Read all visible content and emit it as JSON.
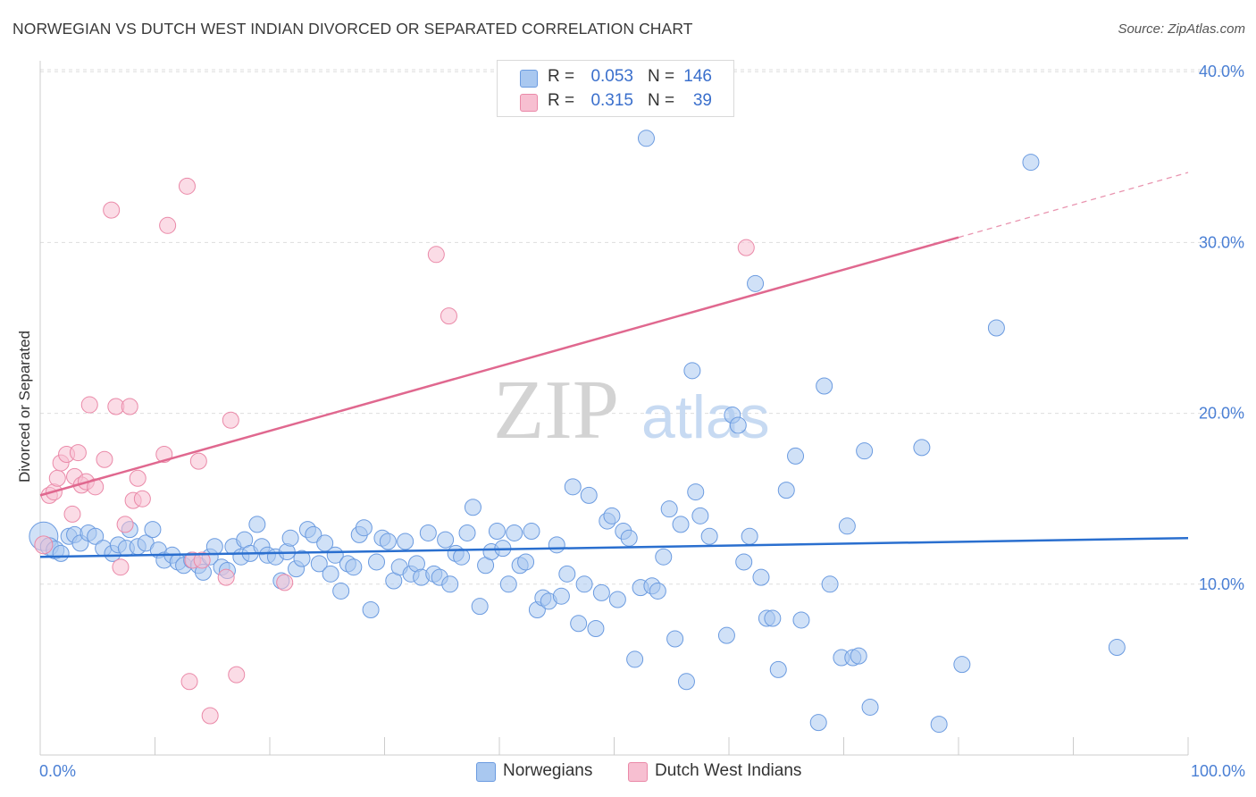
{
  "title": "NORWEGIAN VS DUTCH WEST INDIAN DIVORCED OR SEPARATED CORRELATION CHART",
  "source": "Source: ZipAtlas.com",
  "watermark": {
    "zip": "ZIP",
    "atlas": "atlas"
  },
  "colors": {
    "blue_fill": "#a9c8f0",
    "blue_stroke": "#6b9be0",
    "blue_line": "#2a6fcf",
    "pink_fill": "#f7bfd1",
    "pink_stroke": "#ea89a8",
    "pink_line": "#e0688f",
    "tick_text": "#4a7fd4",
    "grid": "#dddddd"
  },
  "stats": [
    {
      "swatch": "blue",
      "r_label": "R =",
      "r_value": "0.053",
      "n_label": "N =",
      "n_value": "146"
    },
    {
      "swatch": "pink",
      "r_label": "R =",
      "r_value": "0.315",
      "n_label": "N =",
      "n_value": "39"
    }
  ],
  "legend": [
    {
      "swatch": "blue",
      "label": "Norwegians"
    },
    {
      "swatch": "pink",
      "label": "Dutch West Indians"
    }
  ],
  "chart_data": {
    "type": "scatter",
    "title": "NORWEGIAN VS DUTCH WEST INDIAN DIVORCED OR SEPARATED CORRELATION CHART",
    "xlabel": "",
    "ylabel": "Divorced or Separated",
    "xlim": [
      0,
      100
    ],
    "ylim": [
      0,
      42
    ],
    "x_tick_labels": [
      "0.0%",
      "100.0%"
    ],
    "y_ticks": [
      10,
      20,
      30,
      40
    ],
    "y_tick_labels": [
      "10.0%",
      "20.0%",
      "30.0%",
      "40.0%"
    ],
    "grid": "horizontal dashed",
    "series": [
      {
        "name": "Norwegians",
        "color": "blue",
        "trend": {
          "x": [
            0,
            100
          ],
          "y": [
            11.6,
            12.7
          ]
        },
        "points": [
          [
            0.3,
            12.8,
            16
          ],
          [
            0.8,
            12.2,
            10
          ],
          [
            1.3,
            12.0,
            10
          ],
          [
            1.8,
            11.8,
            9
          ],
          [
            2.5,
            12.8,
            9
          ],
          [
            3.0,
            12.9,
            9
          ],
          [
            3.5,
            12.4,
            9
          ],
          [
            4.2,
            13.0,
            9
          ],
          [
            4.8,
            12.8,
            9
          ],
          [
            5.5,
            12.1,
            9
          ],
          [
            6.3,
            11.8,
            9
          ],
          [
            6.8,
            12.3,
            9
          ],
          [
            7.5,
            12.1,
            9
          ],
          [
            7.8,
            13.2,
            9
          ],
          [
            8.5,
            12.2,
            9
          ],
          [
            9.2,
            12.4,
            9
          ],
          [
            9.8,
            13.2,
            9
          ],
          [
            10.3,
            12.0,
            9
          ],
          [
            10.8,
            11.4,
            9
          ],
          [
            11.5,
            11.7,
            9
          ],
          [
            12.0,
            11.3,
            9
          ],
          [
            12.5,
            11.1,
            9
          ],
          [
            13.2,
            11.4,
            9
          ],
          [
            13.8,
            11.1,
            9
          ],
          [
            14.2,
            10.7,
            9
          ],
          [
            14.8,
            11.6,
            9
          ],
          [
            15.2,
            12.2,
            9
          ],
          [
            15.8,
            11.0,
            9
          ],
          [
            16.3,
            10.8,
            9
          ],
          [
            16.8,
            12.2,
            9
          ],
          [
            17.5,
            11.6,
            9
          ],
          [
            17.8,
            12.6,
            9
          ],
          [
            18.3,
            11.8,
            9
          ],
          [
            18.9,
            13.5,
            9
          ],
          [
            19.3,
            12.2,
            9
          ],
          [
            19.8,
            11.7,
            9
          ],
          [
            20.5,
            11.6,
            9
          ],
          [
            21.0,
            10.2,
            9
          ],
          [
            21.5,
            11.9,
            9
          ],
          [
            21.8,
            12.7,
            9
          ],
          [
            22.3,
            10.9,
            9
          ],
          [
            22.8,
            11.5,
            9
          ],
          [
            23.3,
            13.2,
            9
          ],
          [
            23.8,
            12.9,
            9
          ],
          [
            24.3,
            11.2,
            9
          ],
          [
            24.8,
            12.4,
            9
          ],
          [
            25.3,
            10.6,
            9
          ],
          [
            25.7,
            11.7,
            9
          ],
          [
            26.2,
            9.6,
            9
          ],
          [
            26.8,
            11.2,
            9
          ],
          [
            27.3,
            11.0,
            9
          ],
          [
            27.8,
            12.9,
            9
          ],
          [
            28.2,
            13.3,
            9
          ],
          [
            28.8,
            8.5,
            9
          ],
          [
            29.3,
            11.3,
            9
          ],
          [
            29.8,
            12.7,
            9
          ],
          [
            30.3,
            12.5,
            9
          ],
          [
            30.8,
            10.2,
            9
          ],
          [
            31.3,
            11.0,
            9
          ],
          [
            31.8,
            12.5,
            9
          ],
          [
            32.3,
            10.6,
            9
          ],
          [
            32.8,
            11.2,
            9
          ],
          [
            33.2,
            10.4,
            9
          ],
          [
            33.8,
            13.0,
            9
          ],
          [
            34.3,
            10.6,
            9
          ],
          [
            34.8,
            10.4,
            9
          ],
          [
            35.3,
            12.6,
            9
          ],
          [
            35.7,
            10.0,
            9
          ],
          [
            36.2,
            11.8,
            9
          ],
          [
            36.7,
            11.6,
            9
          ],
          [
            37.2,
            13.0,
            9
          ],
          [
            37.7,
            14.5,
            9
          ],
          [
            38.3,
            8.7,
            9
          ],
          [
            38.8,
            11.1,
            9
          ],
          [
            39.3,
            11.9,
            9
          ],
          [
            39.8,
            13.1,
            9
          ],
          [
            40.3,
            12.1,
            9
          ],
          [
            40.8,
            10.0,
            9
          ],
          [
            41.3,
            13.0,
            9
          ],
          [
            41.8,
            11.1,
            9
          ],
          [
            42.3,
            11.3,
            9
          ],
          [
            42.8,
            13.1,
            9
          ],
          [
            43.3,
            8.5,
            9
          ],
          [
            43.8,
            9.2,
            9
          ],
          [
            44.3,
            9.0,
            9
          ],
          [
            45.0,
            12.3,
            9
          ],
          [
            45.4,
            9.3,
            9
          ],
          [
            45.9,
            10.6,
            9
          ],
          [
            46.4,
            15.7,
            9
          ],
          [
            46.9,
            7.7,
            9
          ],
          [
            47.4,
            10.0,
            9
          ],
          [
            47.8,
            15.2,
            9
          ],
          [
            48.4,
            7.4,
            9
          ],
          [
            48.9,
            9.5,
            9
          ],
          [
            49.4,
            13.7,
            9
          ],
          [
            49.8,
            14.0,
            9
          ],
          [
            50.3,
            9.1,
            9
          ],
          [
            50.8,
            13.1,
            9
          ],
          [
            51.3,
            12.7,
            9
          ],
          [
            51.8,
            5.6,
            9
          ],
          [
            52.3,
            9.8,
            9
          ],
          [
            52.8,
            36.1,
            9
          ],
          [
            53.3,
            9.9,
            9
          ],
          [
            53.8,
            9.6,
            9
          ],
          [
            54.3,
            11.6,
            9
          ],
          [
            54.8,
            14.4,
            9
          ],
          [
            55.3,
            6.8,
            9
          ],
          [
            55.8,
            13.5,
            9
          ],
          [
            56.3,
            4.3,
            9
          ],
          [
            56.8,
            22.5,
            9
          ],
          [
            57.1,
            15.4,
            9
          ],
          [
            57.5,
            14.0,
            9
          ],
          [
            58.3,
            12.8,
            9
          ],
          [
            59.8,
            7.0,
            9
          ],
          [
            60.3,
            19.9,
            9
          ],
          [
            60.8,
            19.3,
            9
          ],
          [
            61.3,
            11.3,
            9
          ],
          [
            61.8,
            12.8,
            9
          ],
          [
            62.3,
            27.6,
            9
          ],
          [
            62.8,
            10.4,
            9
          ],
          [
            63.3,
            8.0,
            9
          ],
          [
            63.8,
            8.0,
            9
          ],
          [
            64.3,
            5.0,
            9
          ],
          [
            65.0,
            15.5,
            9
          ],
          [
            65.8,
            17.5,
            9
          ],
          [
            66.3,
            7.9,
            9
          ],
          [
            67.8,
            1.9,
            9
          ],
          [
            68.3,
            21.6,
            9
          ],
          [
            68.8,
            10.0,
            9
          ],
          [
            69.8,
            5.7,
            9
          ],
          [
            70.3,
            13.4,
            9
          ],
          [
            70.8,
            5.7,
            9
          ],
          [
            71.3,
            5.8,
            9
          ],
          [
            71.8,
            17.8,
            9
          ],
          [
            72.3,
            2.8,
            9
          ],
          [
            76.8,
            18.0,
            9
          ],
          [
            78.3,
            1.8,
            9
          ],
          [
            80.3,
            5.3,
            9
          ],
          [
            83.3,
            25.0,
            9
          ],
          [
            86.3,
            34.7,
            9
          ],
          [
            93.8,
            6.3,
            9
          ]
        ]
      },
      {
        "name": "Dutch West Indians",
        "color": "pink",
        "trend": {
          "x": [
            0,
            80
          ],
          "y": [
            15.2,
            30.3
          ],
          "extended": {
            "x": [
              80,
              100
            ],
            "y": [
              30.3,
              34.1
            ]
          }
        },
        "points": [
          [
            0.3,
            12.3,
            10
          ],
          [
            0.8,
            15.2,
            9
          ],
          [
            1.2,
            15.4,
            9
          ],
          [
            1.5,
            16.2,
            9
          ],
          [
            1.8,
            17.1,
            9
          ],
          [
            2.3,
            17.6,
            9
          ],
          [
            2.8,
            14.1,
            9
          ],
          [
            3.0,
            16.3,
            9
          ],
          [
            3.3,
            17.7,
            9
          ],
          [
            3.6,
            15.8,
            9
          ],
          [
            4.0,
            16.0,
            9
          ],
          [
            4.3,
            20.5,
            9
          ],
          [
            4.8,
            15.7,
            9
          ],
          [
            5.6,
            17.3,
            9
          ],
          [
            6.2,
            31.9,
            9
          ],
          [
            6.6,
            20.4,
            9
          ],
          [
            7.0,
            11.0,
            9
          ],
          [
            7.4,
            13.5,
            9
          ],
          [
            7.8,
            20.4,
            9
          ],
          [
            8.1,
            14.9,
            9
          ],
          [
            8.5,
            16.2,
            9
          ],
          [
            8.9,
            15.0,
            9
          ],
          [
            10.8,
            17.6,
            9
          ],
          [
            11.1,
            31.0,
            9
          ],
          [
            12.8,
            33.3,
            9
          ],
          [
            13.0,
            4.3,
            9
          ],
          [
            13.3,
            11.4,
            9
          ],
          [
            13.8,
            17.2,
            9
          ],
          [
            14.1,
            11.4,
            9
          ],
          [
            14.8,
            2.3,
            9
          ],
          [
            16.2,
            10.4,
            9
          ],
          [
            16.6,
            19.6,
            9
          ],
          [
            17.1,
            4.7,
            9
          ],
          [
            21.3,
            10.1,
            9
          ],
          [
            34.5,
            29.3,
            9
          ],
          [
            35.6,
            25.7,
            9
          ],
          [
            61.5,
            29.7,
            9
          ]
        ]
      }
    ]
  }
}
